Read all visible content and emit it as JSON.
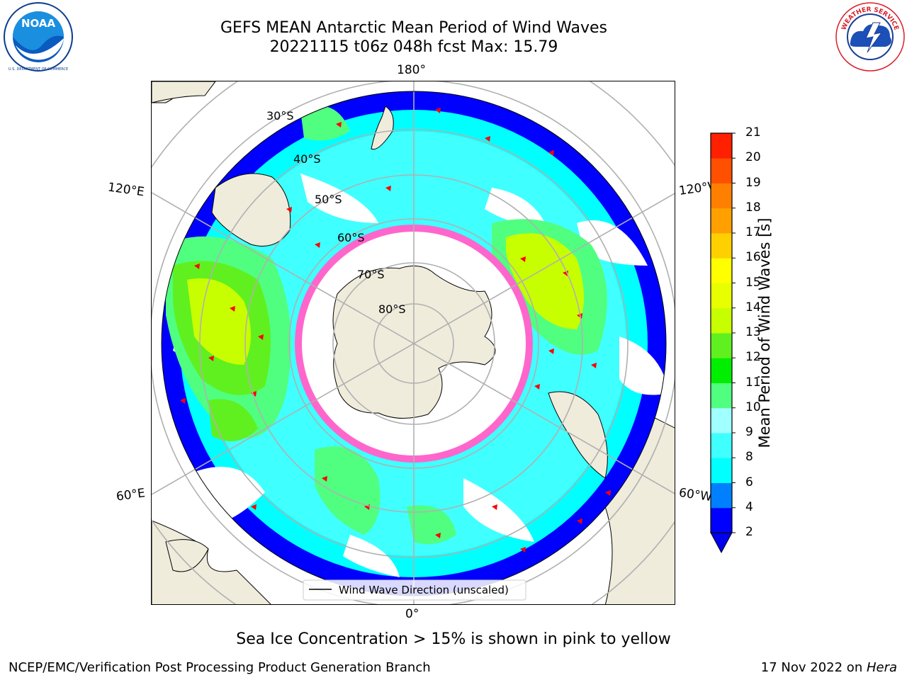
{
  "title": {
    "line1": "GEFS MEAN Antarctic Mean Period of Wind Waves",
    "line2": "20221115 t06z 048h fcst   Max: 15.79"
  },
  "logos": {
    "left": {
      "name": "NOAA",
      "ring_text": "NATIONAL OCEANIC AND ATMOSPHERIC ADMINISTRATION · U.S. DEPARTMENT OF COMMERCE",
      "color": "#0a3d8f"
    },
    "right": {
      "name": "NATIONAL WEATHER SERVICE",
      "color": "#d8202a"
    }
  },
  "map": {
    "projection": "south-polar-stereographic",
    "longitude_labels": [
      "180°",
      "0°",
      "120°E",
      "120°W",
      "60°E",
      "60°W"
    ],
    "latitude_labels": [
      "30°S",
      "40°S",
      "50°S",
      "60°S",
      "70°S",
      "80°S"
    ],
    "legend_label": "Wind Wave Direction (unscaled)",
    "land_color": "#efecdc",
    "arrow_color": "#ff0000",
    "ice_color": "#ff66cc"
  },
  "colorbar": {
    "label": "Mean Period of Wind Waves [s]",
    "ticks": [
      "2",
      "4",
      "6",
      "8",
      "9",
      "10",
      "11",
      "12",
      "13",
      "14",
      "15",
      "16",
      "17",
      "18",
      "19",
      "20",
      "21"
    ],
    "colors": [
      "#0000ff",
      "#0080ff",
      "#00ffff",
      "#40ffff",
      "#a0ffff",
      "#50ff80",
      "#00ee00",
      "#60f020",
      "#c8ff00",
      "#e8ff00",
      "#ffff00",
      "#ffd000",
      "#ffa000",
      "#ff8000",
      "#ff5000",
      "#ff2000"
    ],
    "under_color": "#0000ee"
  },
  "footnote": "Sea Ice Concentration > 15% is shown in pink to yellow",
  "credits": {
    "left": "NCEP/EMC/Verification Post Processing Product Generation Branch",
    "right_prefix": "17 Nov 2022 on ",
    "right_host": "Hera"
  }
}
